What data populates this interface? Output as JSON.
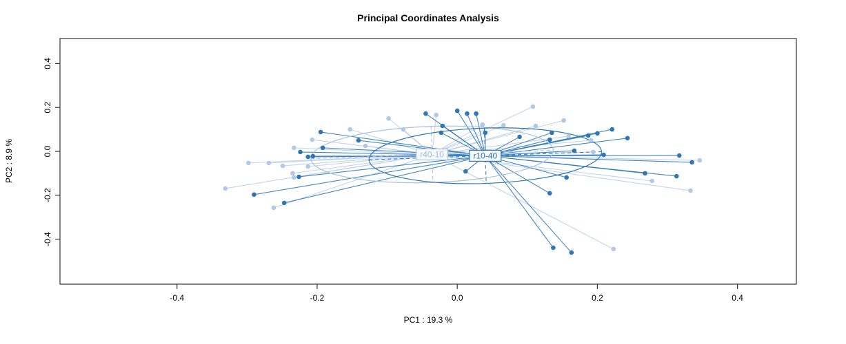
{
  "chart_data": {
    "type": "scatter",
    "title": "Principal Coordinates Analysis",
    "xlabel": "PC1 :  19.3 %",
    "ylabel": "PC2 :  8.9 %",
    "xlim": [
      -0.567,
      0.484
    ],
    "ylim": [
      -0.605,
      0.514
    ],
    "xticks": [
      -0.4,
      -0.2,
      0.0,
      0.2,
      0.4
    ],
    "yticks": [
      -0.4,
      -0.2,
      0.0,
      0.2,
      0.4
    ],
    "grid": false,
    "legend": "none",
    "frame_color": "#333333",
    "groups": [
      {
        "name": "r40-10",
        "point_color": "#b1c8e6",
        "line_color": "#bccfeb",
        "ellipse_color": "#a9c2e0",
        "label_color": "#9fbcdd",
        "centroid": [
          -0.036,
          -0.014
        ],
        "ellipse": {
          "rx": 0.173,
          "ry": 0.128,
          "angle": -2
        },
        "points": [
          [
            -0.098,
            0.15
          ],
          [
            -0.077,
            0.1
          ],
          [
            -0.153,
            0.1
          ],
          [
            -0.207,
            0.053
          ],
          [
            -0.131,
            0.025
          ],
          [
            -0.233,
            0.016
          ],
          [
            -0.298,
            -0.053
          ],
          [
            -0.269,
            -0.053
          ],
          [
            -0.249,
            -0.066
          ],
          [
            -0.213,
            -0.069
          ],
          [
            -0.235,
            -0.1
          ],
          [
            -0.233,
            -0.119
          ],
          [
            -0.331,
            -0.169
          ],
          [
            -0.262,
            -0.257
          ],
          [
            -0.03,
            0.166
          ],
          [
            0.036,
            0.122
          ],
          [
            0.066,
            0.119
          ],
          [
            0.108,
            0.204
          ],
          [
            0.112,
            0.116
          ],
          [
            0.152,
            0.141
          ],
          [
            0.159,
            0.069
          ],
          [
            0.191,
            0.05
          ],
          [
            0.194,
            -0.003
          ],
          [
            0.223,
            -0.445
          ],
          [
            0.278,
            -0.135
          ],
          [
            0.346,
            -0.041
          ],
          [
            0.333,
            -0.179
          ]
        ]
      },
      {
        "name": "r10-40",
        "point_color": "#2e76b4",
        "line_color": "#3079ba",
        "ellipse_color": "#2e76b4",
        "label_color": "#2e76b4",
        "centroid": [
          0.04,
          -0.02
        ],
        "ellipse": {
          "rx": 0.166,
          "ry": 0.126,
          "angle": -2
        },
        "points": [
          [
            -0.045,
            0.172
          ],
          [
            -0.195,
            0.088
          ],
          [
            -0.141,
            0.05
          ],
          [
            -0.192,
            0.016
          ],
          [
            -0.224,
            -0.003
          ],
          [
            -0.213,
            -0.025
          ],
          [
            -0.206,
            -0.022
          ],
          [
            -0.226,
            -0.116
          ],
          [
            -0.29,
            -0.197
          ],
          [
            -0.247,
            -0.235
          ],
          [
            0.0,
            0.185
          ],
          [
            0.014,
            0.172
          ],
          [
            0.027,
            0.172
          ],
          [
            -0.021,
            0.116
          ],
          [
            -0.023,
            0.085
          ],
          [
            0.04,
            0.085
          ],
          [
            0.089,
            0.066
          ],
          [
            0.135,
            0.085
          ],
          [
            0.132,
            0.053
          ],
          [
            0.187,
            0.072
          ],
          [
            0.2,
            0.082
          ],
          [
            0.221,
            0.1
          ],
          [
            0.243,
            0.06
          ],
          [
            0.167,
            0.003
          ],
          [
            0.209,
            -0.016
          ],
          [
            0.012,
            -0.091
          ],
          [
            0.156,
            -0.119
          ],
          [
            0.132,
            -0.191
          ],
          [
            0.137,
            -0.439
          ],
          [
            0.163,
            -0.461
          ],
          [
            0.268,
            -0.1
          ],
          [
            0.313,
            -0.113
          ],
          [
            0.317,
            -0.019
          ],
          [
            0.335,
            -0.05
          ]
        ]
      }
    ]
  }
}
